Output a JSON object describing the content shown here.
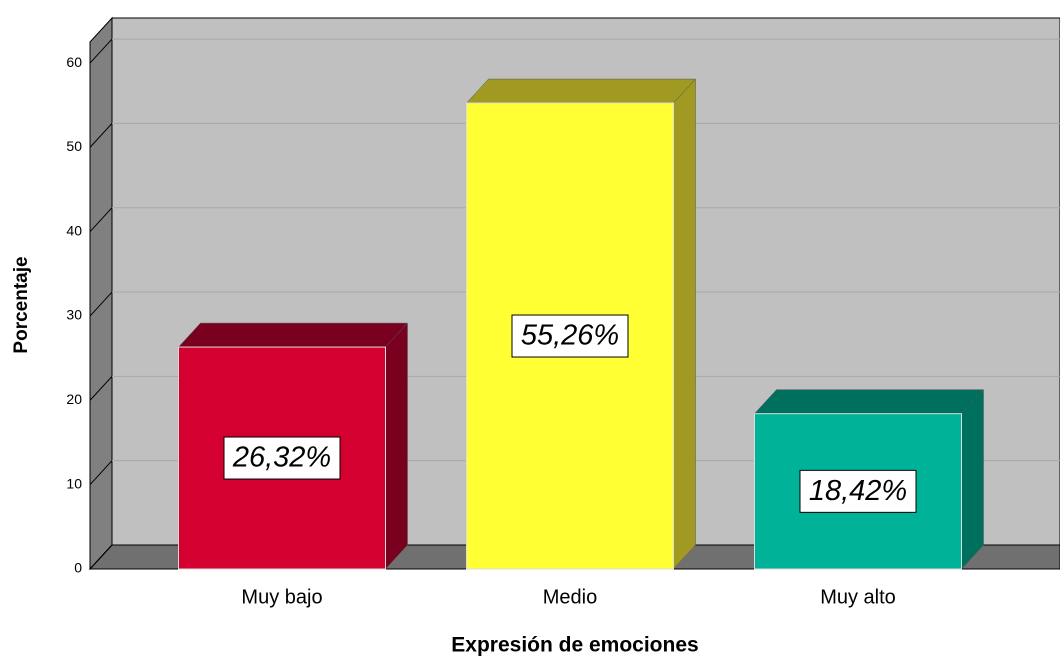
{
  "chart_data": {
    "type": "bar3d",
    "x_label": "Expresión de emociones",
    "y_label": "Porcentaje",
    "categories": [
      "Muy bajo",
      "Medio",
      "Muy alto"
    ],
    "values": [
      26.32,
      55.26,
      18.42
    ],
    "value_labels": [
      "26,32%",
      "55,26%",
      "18,42%"
    ],
    "colors": [
      "#d4002f",
      "#ffff33",
      "#00b398"
    ],
    "side_colors": [
      "#7a0020",
      "#a09a22",
      "#00705e"
    ],
    "ylim": [
      0,
      62.5
    ],
    "yticks": [
      0,
      10,
      20,
      30,
      40,
      50,
      60
    ],
    "grid": true
  }
}
